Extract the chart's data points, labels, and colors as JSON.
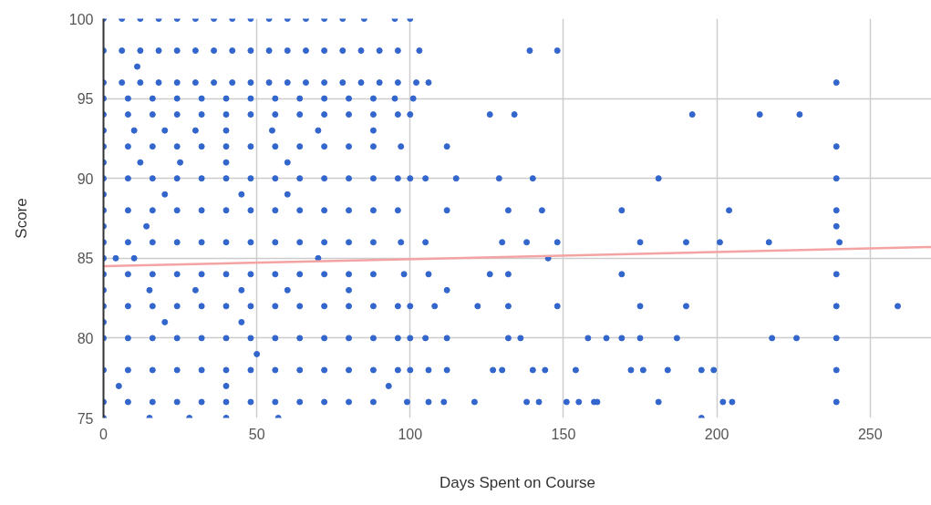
{
  "chart_data": {
    "type": "scatter",
    "xlabel": "Days Spent on Course",
    "ylabel": "Score",
    "xlim": [
      0,
      270
    ],
    "ylim": [
      75,
      100
    ],
    "xticks": [
      0,
      50,
      100,
      150,
      200,
      250
    ],
    "yticks": [
      75,
      80,
      85,
      90,
      95,
      100
    ],
    "grid": true,
    "marker": "circle",
    "series": [
      {
        "color": "#3366cc",
        "x": [
          0,
          6,
          12,
          18,
          24,
          30,
          36,
          42,
          48,
          54,
          60,
          66,
          72,
          78,
          85,
          95,
          100
        ],
        "values": [
          100,
          100,
          100,
          100,
          100,
          100,
          100,
          100,
          100,
          100,
          100,
          100,
          100,
          100,
          100,
          100,
          100
        ]
      },
      {
        "color": "#3366cc",
        "x": [
          0,
          6,
          12,
          18,
          24,
          30,
          36,
          42,
          48,
          54,
          60,
          66,
          72,
          78,
          84,
          90,
          96,
          103,
          139,
          148
        ],
        "values": [
          98,
          98,
          98,
          98,
          98,
          98,
          98,
          98,
          98,
          98,
          98,
          98,
          98,
          98,
          98,
          98,
          98,
          98,
          98,
          98
        ]
      },
      {
        "color": "#3366cc",
        "x": [
          11
        ],
        "values": [
          97
        ]
      },
      {
        "color": "#3366cc",
        "x": [
          0,
          6,
          12,
          18,
          24,
          30,
          36,
          42,
          48,
          54,
          60,
          66,
          72,
          78,
          84,
          90,
          96,
          102,
          106,
          239
        ],
        "values": [
          96,
          96,
          96,
          96,
          96,
          96,
          96,
          96,
          96,
          96,
          96,
          96,
          96,
          96,
          96,
          96,
          96,
          96,
          96,
          96
        ]
      },
      {
        "color": "#3366cc",
        "x": [
          0,
          8,
          16,
          24,
          32,
          40,
          48,
          56,
          64,
          72,
          80,
          88,
          95,
          101
        ],
        "values": [
          95,
          95,
          95,
          95,
          95,
          95,
          95,
          95,
          95,
          95,
          95,
          95,
          95,
          95
        ]
      },
      {
        "color": "#3366cc",
        "x": [
          0,
          8,
          16,
          24,
          32,
          40,
          48,
          56,
          64,
          72,
          80,
          88,
          96,
          100,
          126,
          134,
          192,
          214,
          227
        ],
        "values": [
          94,
          94,
          94,
          94,
          94,
          94,
          94,
          94,
          94,
          94,
          94,
          94,
          94,
          94,
          94,
          94,
          94,
          94,
          94
        ]
      },
      {
        "color": "#3366cc",
        "x": [
          0,
          10,
          20,
          30,
          40,
          55,
          70,
          88
        ],
        "values": [
          93,
          93,
          93,
          93,
          93,
          93,
          93,
          93
        ]
      },
      {
        "color": "#3366cc",
        "x": [
          0,
          8,
          16,
          24,
          32,
          40,
          48,
          56,
          64,
          72,
          80,
          88,
          97,
          112,
          239
        ],
        "values": [
          92,
          92,
          92,
          92,
          92,
          92,
          92,
          92,
          92,
          92,
          92,
          92,
          92,
          92,
          92
        ]
      },
      {
        "color": "#3366cc",
        "x": [
          0,
          12,
          25,
          40,
          60
        ],
        "values": [
          91,
          91,
          91,
          91,
          91
        ]
      },
      {
        "color": "#3366cc",
        "x": [
          0,
          8,
          16,
          24,
          32,
          40,
          48,
          56,
          64,
          72,
          80,
          88,
          96,
          100,
          105,
          115,
          129,
          140,
          181,
          239
        ],
        "values": [
          90,
          90,
          90,
          90,
          90,
          90,
          90,
          90,
          90,
          90,
          90,
          90,
          90,
          90,
          90,
          90,
          90,
          90,
          90,
          90
        ]
      },
      {
        "color": "#3366cc",
        "x": [
          0,
          20,
          45,
          60
        ],
        "values": [
          89,
          89,
          89,
          89
        ]
      },
      {
        "color": "#3366cc",
        "x": [
          0,
          8,
          16,
          24,
          32,
          40,
          48,
          56,
          64,
          72,
          80,
          88,
          96,
          112,
          132,
          143,
          169,
          204,
          239
        ],
        "values": [
          88,
          88,
          88,
          88,
          88,
          88,
          88,
          88,
          88,
          88,
          88,
          88,
          88,
          88,
          88,
          88,
          88,
          88,
          88
        ]
      },
      {
        "color": "#3366cc",
        "x": [
          0,
          14,
          239
        ],
        "values": [
          87,
          87,
          87
        ]
      },
      {
        "color": "#3366cc",
        "x": [
          0,
          8,
          16,
          24,
          32,
          40,
          48,
          56,
          64,
          72,
          80,
          88,
          97,
          105,
          130,
          138,
          148,
          175,
          190,
          201,
          217,
          240
        ],
        "values": [
          86,
          86,
          86,
          86,
          86,
          86,
          86,
          86,
          86,
          86,
          86,
          86,
          86,
          86,
          86,
          86,
          86,
          86,
          86,
          86,
          86,
          86
        ]
      },
      {
        "color": "#3366cc",
        "x": [
          0,
          4,
          10,
          70,
          145
        ],
        "values": [
          85,
          85,
          85,
          85,
          85
        ]
      },
      {
        "color": "#3366cc",
        "x": [
          0,
          8,
          16,
          24,
          32,
          40,
          48,
          56,
          64,
          72,
          80,
          88,
          98,
          106,
          126,
          132,
          169,
          239
        ],
        "values": [
          84,
          84,
          84,
          84,
          84,
          84,
          84,
          84,
          84,
          84,
          84,
          84,
          84,
          84,
          84,
          84,
          84,
          84
        ]
      },
      {
        "color": "#3366cc",
        "x": [
          0,
          15,
          30,
          45,
          60,
          80,
          112
        ],
        "values": [
          83,
          83,
          83,
          83,
          83,
          83,
          83
        ]
      },
      {
        "color": "#3366cc",
        "x": [
          0,
          8,
          16,
          24,
          32,
          40,
          48,
          56,
          64,
          72,
          80,
          88,
          96,
          100,
          108,
          122,
          132,
          148,
          175,
          190,
          239,
          259
        ],
        "values": [
          82,
          82,
          82,
          82,
          82,
          82,
          82,
          82,
          82,
          82,
          82,
          82,
          82,
          82,
          82,
          82,
          82,
          82,
          82,
          82,
          82,
          82
        ]
      },
      {
        "color": "#3366cc",
        "x": [
          0,
          20,
          45
        ],
        "values": [
          81,
          81,
          81
        ]
      },
      {
        "color": "#3366cc",
        "x": [
          0,
          8,
          16,
          24,
          32,
          40,
          48,
          56,
          64,
          72,
          80,
          88,
          96,
          100,
          105,
          112,
          132,
          136,
          158,
          164,
          169,
          175,
          187,
          218,
          226,
          239
        ],
        "values": [
          80,
          80,
          80,
          80,
          80,
          80,
          80,
          80,
          80,
          80,
          80,
          80,
          80,
          80,
          80,
          80,
          80,
          80,
          80,
          80,
          80,
          80,
          80,
          80,
          80,
          80
        ]
      },
      {
        "color": "#3366cc",
        "x": [
          50
        ],
        "values": [
          79
        ]
      },
      {
        "color": "#3366cc",
        "x": [
          0,
          8,
          16,
          24,
          32,
          40,
          48,
          56,
          64,
          72,
          80,
          88,
          96,
          100,
          106,
          112,
          127,
          130,
          140,
          144,
          154,
          172,
          176,
          184,
          195,
          199,
          239
        ],
        "values": [
          78,
          78,
          78,
          78,
          78,
          78,
          78,
          78,
          78,
          78,
          78,
          78,
          78,
          78,
          78,
          78,
          78,
          78,
          78,
          78,
          78,
          78,
          78,
          78,
          78,
          78,
          78
        ]
      },
      {
        "color": "#3366cc",
        "x": [
          5,
          40,
          93
        ],
        "values": [
          77,
          77,
          77
        ]
      },
      {
        "color": "#3366cc",
        "x": [
          0,
          8,
          16,
          24,
          32,
          40,
          48,
          56,
          64,
          72,
          80,
          88,
          99,
          106,
          111,
          121,
          138,
          142,
          151,
          155,
          160,
          161,
          181,
          202,
          205,
          239
        ],
        "values": [
          76,
          76,
          76,
          76,
          76,
          76,
          76,
          76,
          76,
          76,
          76,
          76,
          76,
          76,
          76,
          76,
          76,
          76,
          76,
          76,
          76,
          76,
          76,
          76,
          76,
          76
        ]
      },
      {
        "color": "#3366cc",
        "x": [
          0,
          15,
          28,
          40,
          57,
          195
        ],
        "values": [
          75,
          75,
          75,
          75,
          75,
          75
        ]
      },
      {
        "type": "line",
        "marker": "none",
        "color": "#f4a3a3",
        "x": [
          0,
          270
        ],
        "values": [
          84.5,
          85.7
        ]
      }
    ]
  }
}
